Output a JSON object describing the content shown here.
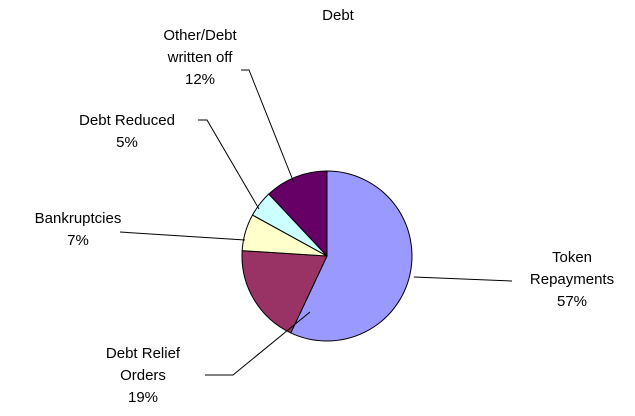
{
  "chart_data": {
    "type": "pie",
    "title": "Debt",
    "slices": [
      {
        "label_lines": [
          "Token",
          "Repayments"
        ],
        "percent_label": "57%",
        "value": 57,
        "color": "#9999ff"
      },
      {
        "label_lines": [
          "Debt Relief",
          "Orders"
        ],
        "percent_label": "19%",
        "value": 19,
        "color": "#993366"
      },
      {
        "label_lines": [
          "Bankruptcies"
        ],
        "percent_label": "7%",
        "value": 7,
        "color": "#ffffcc"
      },
      {
        "label_lines": [
          "Debt Reduced"
        ],
        "percent_label": "5%",
        "value": 5,
        "color": "#ccffff"
      },
      {
        "label_lines": [
          "Other/Debt",
          "written off"
        ],
        "percent_label": "12%",
        "value": 12,
        "color": "#660066"
      }
    ]
  }
}
